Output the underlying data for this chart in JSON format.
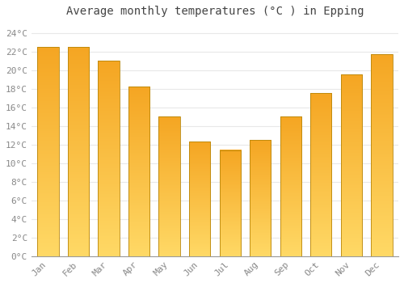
{
  "title": "Average monthly temperatures (°C ) in Epping",
  "months": [
    "Jan",
    "Feb",
    "Mar",
    "Apr",
    "May",
    "Jun",
    "Jul",
    "Aug",
    "Sep",
    "Oct",
    "Nov",
    "Dec"
  ],
  "values": [
    22.5,
    22.5,
    21.0,
    18.2,
    15.0,
    12.3,
    11.4,
    12.5,
    15.0,
    17.5,
    19.5,
    21.7
  ],
  "bar_color_top": "#F5A623",
  "bar_color_bottom": "#FFD966",
  "ylim": [
    0,
    25
  ],
  "yticks": [
    0,
    2,
    4,
    6,
    8,
    10,
    12,
    14,
    16,
    18,
    20,
    22,
    24
  ],
  "ytick_labels": [
    "0°C",
    "2°C",
    "4°C",
    "6°C",
    "8°C",
    "10°C",
    "12°C",
    "14°C",
    "16°C",
    "18°C",
    "20°C",
    "22°C",
    "24°C"
  ],
  "background_color": "#FFFFFF",
  "grid_color": "#E8E8E8",
  "title_fontsize": 10,
  "tick_fontsize": 8,
  "font_family": "monospace",
  "bar_edge_color": "#B8860B",
  "bar_width": 0.7
}
